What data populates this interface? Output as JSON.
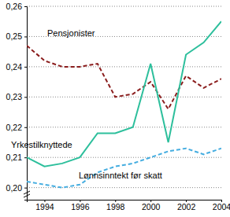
{
  "chart_data": {
    "type": "line",
    "x": [
      1993,
      1994,
      1995,
      1996,
      1997,
      1998,
      1999,
      2000,
      2001,
      2002,
      2003,
      2004
    ],
    "series": [
      {
        "name": "Pensjonister",
        "color": "#8b1e1e",
        "line_style": "dashed",
        "values": [
          0.247,
          0.242,
          0.24,
          0.24,
          0.241,
          0.23,
          0.231,
          0.235,
          0.226,
          0.237,
          0.233,
          0.236
        ]
      },
      {
        "name": "Yrkestilknyttede",
        "color": "#2dbf9c",
        "line_style": "solid",
        "values": [
          0.21,
          0.207,
          0.208,
          0.21,
          0.218,
          0.218,
          0.22,
          0.241,
          0.215,
          0.244,
          0.248,
          0.255
        ]
      },
      {
        "name": "Lønnsinntekt før skatt",
        "color": "#45ade0",
        "line_style": "dashed",
        "values": [
          0.202,
          0.201,
          0.2,
          0.201,
          0.205,
          0.207,
          0.208,
          0.21,
          0.212,
          0.213,
          0.211,
          0.213
        ]
      }
    ],
    "xlim": [
      1993,
      2004
    ],
    "xticks": [
      1994,
      1996,
      1998,
      2000,
      2002,
      2004
    ],
    "ylim": [
      0.196,
      0.26
    ],
    "yticks": [
      {
        "value": 0.2,
        "label": "0,20"
      },
      {
        "value": 0.21,
        "label": "0,21"
      },
      {
        "value": 0.22,
        "label": "0,22"
      },
      {
        "value": 0.23,
        "label": "0,23"
      },
      {
        "value": 0.24,
        "label": "0,24"
      },
      {
        "value": 0.25,
        "label": "0,25"
      },
      {
        "value": 0.26,
        "label": "0,26"
      }
    ],
    "grid": true
  }
}
